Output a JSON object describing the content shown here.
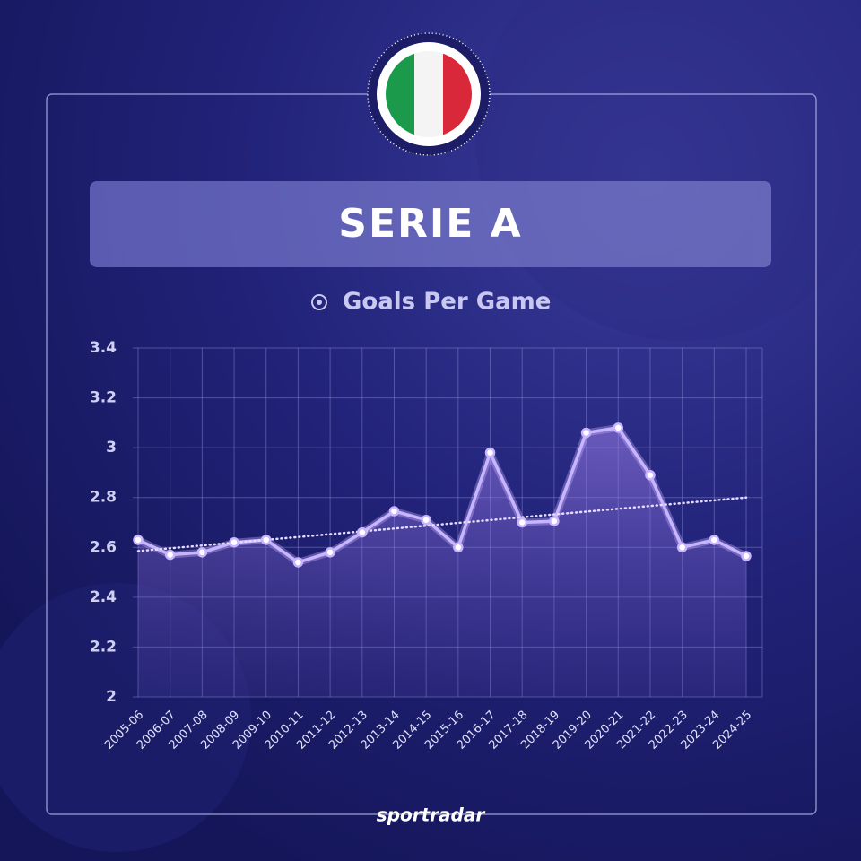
{
  "chart_data": {
    "type": "line",
    "title": "SERIE A",
    "subtitle": "Goals Per Game",
    "categories": [
      "2005-06",
      "2006-07",
      "2007-08",
      "2008-09",
      "2009-10",
      "2010-11",
      "2011-12",
      "2012-13",
      "2013-14",
      "2014-15",
      "2015-16",
      "2016-17",
      "2017-18",
      "2018-19",
      "2019-20",
      "2020-21",
      "2021-22",
      "2022-23",
      "2023-24",
      "2024-25"
    ],
    "values": [
      2.63,
      2.57,
      2.58,
      2.62,
      2.63,
      2.54,
      2.58,
      2.66,
      2.745,
      2.71,
      2.6,
      2.98,
      2.7,
      2.705,
      3.06,
      3.08,
      2.89,
      2.6,
      2.63,
      2.565
    ],
    "color": "#c9b4ff",
    "trendline": [
      2.585,
      2.8
    ],
    "ylim": [
      2,
      3.4
    ],
    "yticks": [
      2,
      2.2,
      2.4,
      2.6,
      2.8,
      3,
      3.2,
      3.4
    ],
    "grid": true
  },
  "brand": "sportradar"
}
